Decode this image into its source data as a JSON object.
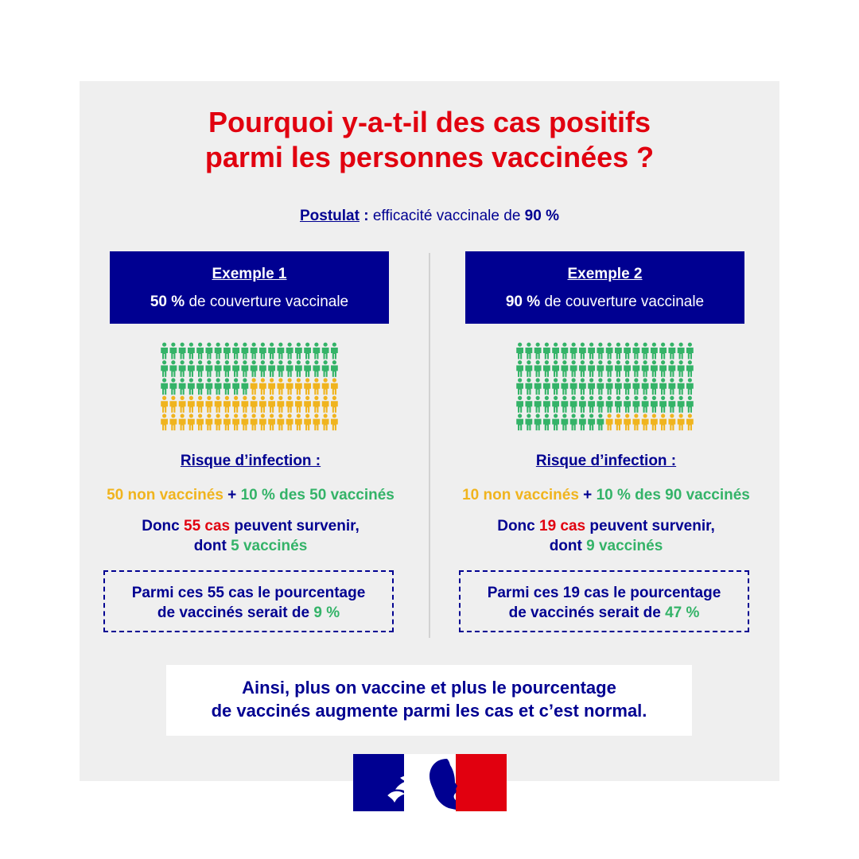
{
  "title_line1": "Pourquoi y-a-t-il des cas positifs",
  "title_line2": "parmi les personnes vaccinées ?",
  "postulat": {
    "label": "Postulat",
    "sep": " : ",
    "text": "efficacité vaccinale de ",
    "value": "90 %"
  },
  "examples": [
    {
      "title": "Exemple 1",
      "coverage_value": "50 %",
      "coverage_text": " de couverture vaccinale",
      "vaccinated_count": 50,
      "total": 100,
      "risk_heading": "Risque d’infection :",
      "unvaccinated_part": "50 non vaccinés",
      "plus": " + ",
      "vaccinated_part": "10 % des 50 vaccinés",
      "donc_prefix": "Donc ",
      "cases": "55 cas",
      "donc_suffix": " peuvent survenir,",
      "dont_prefix": "dont ",
      "dont_value": "5 vaccinés",
      "box_line1": "Parmi ces 55 cas le pourcentage",
      "box_line2_prefix": "de vaccinés serait de ",
      "box_value": "9 %"
    },
    {
      "title": "Exemple 2",
      "coverage_value": "90 %",
      "coverage_text": " de couverture vaccinale",
      "vaccinated_count": 90,
      "total": 100,
      "risk_heading": "Risque d’infection :",
      "unvaccinated_part": "10 non vaccinés",
      "plus": " + ",
      "vaccinated_part": "10 % des 90 vaccinés",
      "donc_prefix": "Donc ",
      "cases": "19 cas",
      "donc_suffix": " peuvent survenir,",
      "dont_prefix": "dont ",
      "dont_value": "9 vaccinés",
      "box_line1": "Parmi ces 19 cas le pourcentage",
      "box_line2_prefix": "de vaccinés serait de ",
      "box_value": "47 %"
    }
  ],
  "conclusion_line1": "Ainsi, plus on vaccine et plus le pourcentage",
  "conclusion_line2": "de vaccinés augmente parmi les cas et c’est normal.",
  "colors": {
    "navy": "#000091",
    "red": "#e1000f",
    "green": "#34b368",
    "yellow": "#f0b41e",
    "panel": "#efefef"
  },
  "logo": {
    "name": "marianne-logo",
    "colors": [
      "#000091",
      "#ffffff",
      "#e1000f"
    ]
  }
}
